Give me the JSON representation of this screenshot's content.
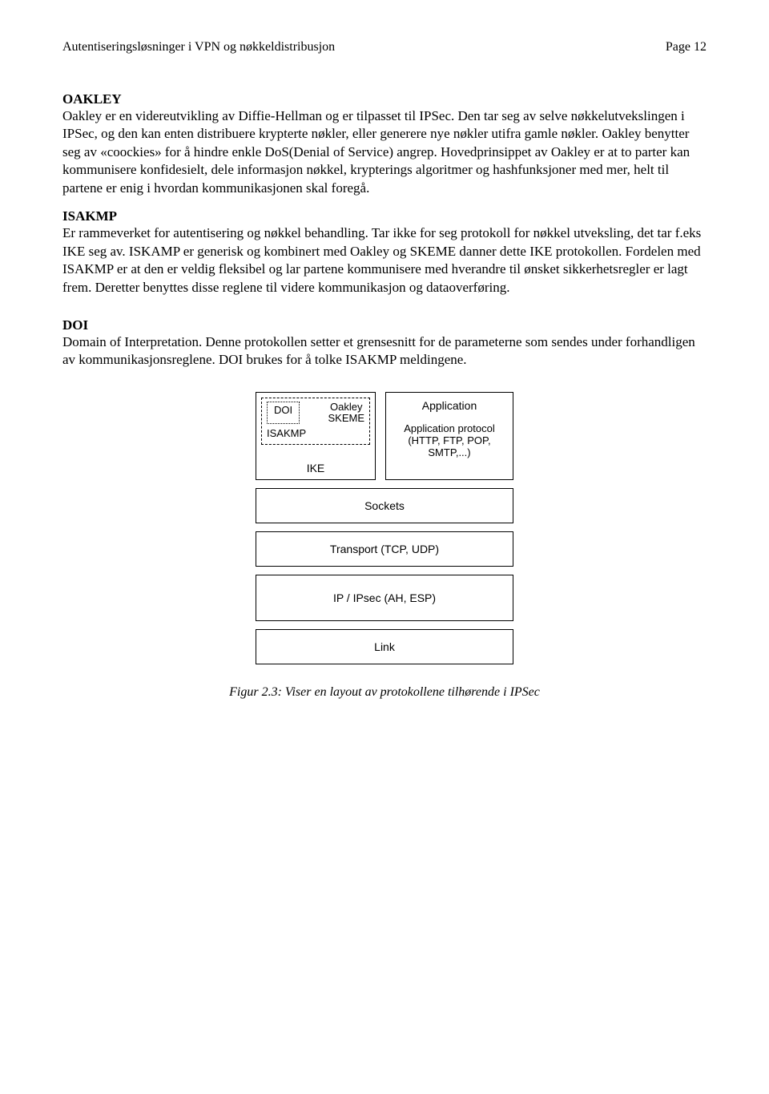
{
  "header": {
    "title": "Autentiseringsløsninger i VPN og nøkkeldistribusjon",
    "page": "Page 12"
  },
  "sections": {
    "oakley": {
      "heading": "OAKLEY",
      "text": "Oakley er en videreutvikling av Diffie-Hellman og er tilpasset til IPSec. Den tar seg av selve nøkkelutvekslingen i IPSec, og den kan enten distribuere krypterte nøkler, eller generere nye nøkler utifra gamle nøkler. Oakley benytter seg av «coockies» for å hindre enkle DoS(Denial of Service) angrep. Hovedprinsippet av Oakley er at to parter kan kommunisere konfidesielt, dele informasjon nøkkel, krypterings algoritmer og hashfunksjoner med mer, helt til partene er enig i hvordan kommunikasjonen skal foregå."
    },
    "isakmp": {
      "heading": "ISAKMP",
      "text": "Er rammeverket for autentisering og nøkkel behandling. Tar ikke for seg protokoll for nøkkel utveksling, det tar f.eks IKE seg av. ISKAMP er generisk og kombinert med Oakley og SKEME danner dette IKE protokollen. Fordelen med ISAKMP er at den er veldig fleksibel og lar partene kommunisere med hverandre til ønsket sikkerhetsregler er lagt frem. Deretter benyttes disse reglene til videre kommunikasjon og dataoverføring."
    },
    "doi": {
      "heading": "DOI",
      "text": "Domain of Interpretation. Denne protokollen setter et grensesnitt for de parameterne som sendes under forhandligen av kommunikasjonsreglene. DOI brukes for å tolke ISAKMP meldingene."
    }
  },
  "diagram": {
    "ike": {
      "doi": "DOI",
      "oakley": "Oakley",
      "skeme": "SKEME",
      "isakmp": "ISAKMP",
      "ike": "IKE"
    },
    "app": {
      "title": "Application",
      "proto_line1": "Application protocol",
      "proto_line2": "(HTTP, FTP, POP,",
      "proto_line3": "SMTP,...)"
    },
    "layers": {
      "sockets": "Sockets",
      "transport": "Transport (TCP, UDP)",
      "ipsec": "IP / IPsec (AH, ESP)",
      "link": "Link"
    }
  },
  "caption": "Figur 2.3: Viser en layout av protokollene tilhørende i IPSec"
}
